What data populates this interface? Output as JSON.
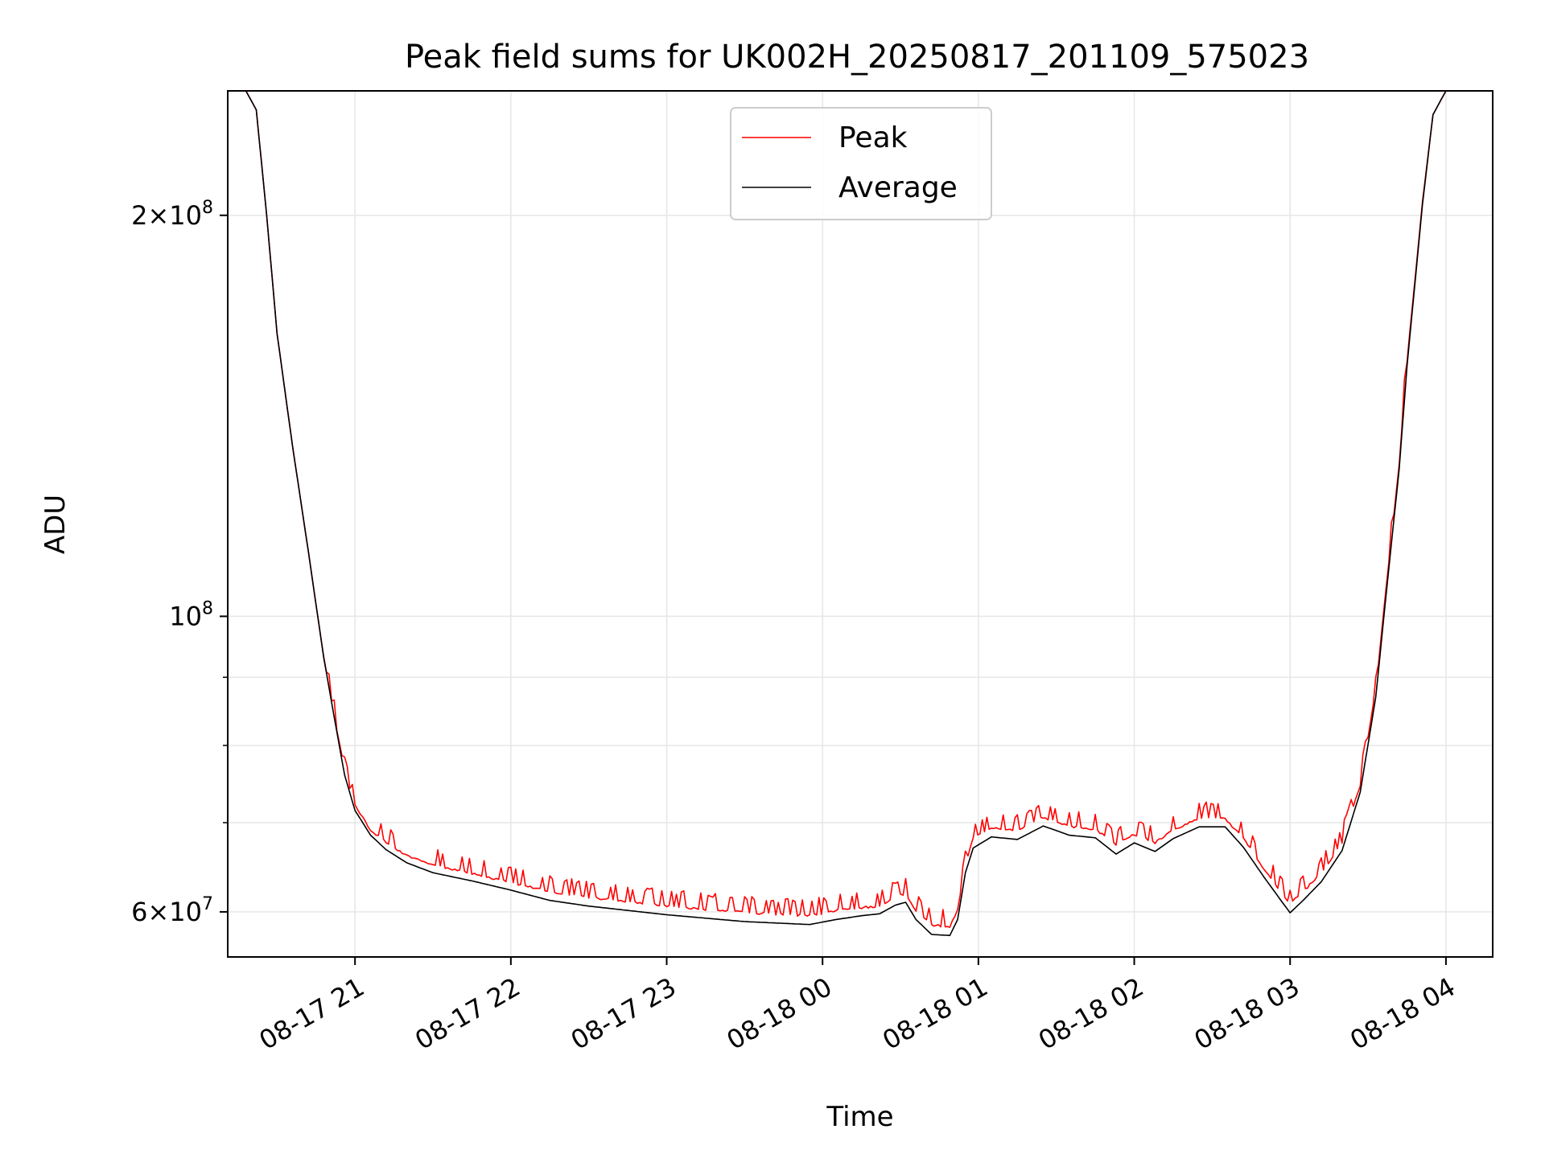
{
  "chart_data": {
    "type": "line",
    "title": "Peak field sums for UK002H_20250817_201109_575023",
    "xlabel": "Time",
    "ylabel": "ADU",
    "yscale": "log",
    "grid": true,
    "legend_position": "top-center",
    "xlim": [
      "2025-08-17 20:11",
      "2025-08-18 04:18"
    ],
    "ylim": [
      55500000,
      248000000
    ],
    "xticks": [
      {
        "t": "2025-08-17 21:00",
        "label": "08-17 21"
      },
      {
        "t": "2025-08-17 22:00",
        "label": "08-17 22"
      },
      {
        "t": "2025-08-17 23:00",
        "label": "08-17 23"
      },
      {
        "t": "2025-08-18 00:00",
        "label": "08-18 00"
      },
      {
        "t": "2025-08-18 01:00",
        "label": "08-18 01"
      },
      {
        "t": "2025-08-18 02:00",
        "label": "08-18 02"
      },
      {
        "t": "2025-08-18 03:00",
        "label": "08-18 03"
      },
      {
        "t": "2025-08-18 04:00",
        "label": "08-18 04"
      }
    ],
    "yticks_major": [
      {
        "v": 60000000,
        "mant": "6",
        "base": "10",
        "exp": "7"
      },
      {
        "v": 100000000,
        "mant": "",
        "base": "10",
        "exp": "8"
      },
      {
        "v": 200000000,
        "mant": "2",
        "base": "10",
        "exp": "8"
      }
    ],
    "yticks_minor": [
      70000000,
      80000000,
      90000000
    ],
    "series": [
      {
        "name": "Peak",
        "color": "#ff0000",
        "spiky": true,
        "points": [
          [
            "2025-08-17 20:11",
            248000000
          ],
          [
            "2025-08-17 20:18",
            248000000
          ],
          [
            "2025-08-17 20:22",
            240000000
          ],
          [
            "2025-08-17 20:26",
            200000000
          ],
          [
            "2025-08-17 20:30",
            163000000
          ],
          [
            "2025-08-17 20:36",
            134000000
          ],
          [
            "2025-08-17 20:42",
            112000000
          ],
          [
            "2025-08-17 20:48",
            93000000
          ],
          [
            "2025-08-17 20:52",
            84000000
          ],
          [
            "2025-08-17 20:56",
            76500000
          ],
          [
            "2025-08-17 21:00",
            72000000
          ],
          [
            "2025-08-17 21:06",
            69000000
          ],
          [
            "2025-08-17 21:12",
            67500000
          ],
          [
            "2025-08-17 21:20",
            66000000
          ],
          [
            "2025-08-17 21:30",
            64900000
          ],
          [
            "2025-08-17 21:45",
            64000000
          ],
          [
            "2025-08-17 22:00",
            63000000
          ],
          [
            "2025-08-17 22:15",
            62000000
          ],
          [
            "2025-08-17 22:30",
            61400000
          ],
          [
            "2025-08-17 23:00",
            60500000
          ],
          [
            "2025-08-17 23:30",
            59800000
          ],
          [
            "2025-08-17 23:55",
            59500000
          ],
          [
            "2025-08-18 00:05",
            60000000
          ],
          [
            "2025-08-18 00:15",
            60300000
          ],
          [
            "2025-08-18 00:22",
            60500000
          ],
          [
            "2025-08-18 00:28",
            61500000
          ],
          [
            "2025-08-18 00:32",
            61800000
          ],
          [
            "2025-08-18 00:36",
            60000000
          ],
          [
            "2025-08-18 00:42",
            58500000
          ],
          [
            "2025-08-18 00:49",
            58400000
          ],
          [
            "2025-08-18 00:52",
            60000000
          ],
          [
            "2025-08-18 00:55",
            65000000
          ],
          [
            "2025-08-18 00:58",
            68000000
          ],
          [
            "2025-08-18 01:05",
            69200000
          ],
          [
            "2025-08-18 01:15",
            68900000
          ],
          [
            "2025-08-18 01:25",
            70500000
          ],
          [
            "2025-08-18 01:35",
            69400000
          ],
          [
            "2025-08-18 01:45",
            69100000
          ],
          [
            "2025-08-18 01:53",
            67200000
          ],
          [
            "2025-08-18 02:00",
            68500000
          ],
          [
            "2025-08-18 02:08",
            67500000
          ],
          [
            "2025-08-18 02:15",
            69000000
          ],
          [
            "2025-08-18 02:25",
            70400000
          ],
          [
            "2025-08-18 02:35",
            70400000
          ],
          [
            "2025-08-18 02:42",
            68000000
          ],
          [
            "2025-08-18 02:50",
            64500000
          ],
          [
            "2025-08-18 02:57",
            61800000
          ],
          [
            "2025-08-18 03:00",
            60800000
          ],
          [
            "2025-08-18 03:05",
            62000000
          ],
          [
            "2025-08-18 03:12",
            64000000
          ],
          [
            "2025-08-18 03:20",
            67500000
          ],
          [
            "2025-08-18 03:27",
            74500000
          ],
          [
            "2025-08-18 03:33",
            88000000
          ],
          [
            "2025-08-18 03:37",
            105000000
          ],
          [
            "2025-08-18 03:42",
            130000000
          ],
          [
            "2025-08-18 03:45",
            155000000
          ],
          [
            "2025-08-18 03:51",
            205000000
          ],
          [
            "2025-08-18 03:55",
            238000000
          ],
          [
            "2025-08-18 04:00",
            248000000
          ],
          [
            "2025-08-18 04:18",
            248000000
          ]
        ]
      },
      {
        "name": "Average",
        "color": "#000000",
        "spiky": false,
        "points": [
          [
            "2025-08-17 20:11",
            248000000
          ],
          [
            "2025-08-17 20:18",
            248000000
          ],
          [
            "2025-08-17 20:22",
            240000000
          ],
          [
            "2025-08-17 20:26",
            200000000
          ],
          [
            "2025-08-17 20:30",
            163000000
          ],
          [
            "2025-08-17 20:36",
            134000000
          ],
          [
            "2025-08-17 20:42",
            112000000
          ],
          [
            "2025-08-17 20:48",
            93000000
          ],
          [
            "2025-08-17 20:52",
            84000000
          ],
          [
            "2025-08-17 20:56",
            76000000
          ],
          [
            "2025-08-17 21:00",
            71500000
          ],
          [
            "2025-08-17 21:06",
            68500000
          ],
          [
            "2025-08-17 21:12",
            66800000
          ],
          [
            "2025-08-17 21:20",
            65300000
          ],
          [
            "2025-08-17 21:30",
            64200000
          ],
          [
            "2025-08-17 21:45",
            63300000
          ],
          [
            "2025-08-17 22:00",
            62300000
          ],
          [
            "2025-08-17 22:15",
            61200000
          ],
          [
            "2025-08-17 22:30",
            60600000
          ],
          [
            "2025-08-17 23:00",
            59700000
          ],
          [
            "2025-08-17 23:30",
            59000000
          ],
          [
            "2025-08-17 23:55",
            58700000
          ],
          [
            "2025-08-18 00:05",
            59200000
          ],
          [
            "2025-08-18 00:15",
            59600000
          ],
          [
            "2025-08-18 00:22",
            59800000
          ],
          [
            "2025-08-18 00:28",
            60700000
          ],
          [
            "2025-08-18 00:32",
            61000000
          ],
          [
            "2025-08-18 00:36",
            59200000
          ],
          [
            "2025-08-18 00:42",
            57700000
          ],
          [
            "2025-08-18 00:49",
            57600000
          ],
          [
            "2025-08-18 00:52",
            59200000
          ],
          [
            "2025-08-18 00:55",
            64200000
          ],
          [
            "2025-08-18 00:58",
            67000000
          ],
          [
            "2025-08-18 01:05",
            68300000
          ],
          [
            "2025-08-18 01:15",
            68000000
          ],
          [
            "2025-08-18 01:25",
            69600000
          ],
          [
            "2025-08-18 01:35",
            68500000
          ],
          [
            "2025-08-18 01:45",
            68200000
          ],
          [
            "2025-08-18 01:53",
            66300000
          ],
          [
            "2025-08-18 02:00",
            67600000
          ],
          [
            "2025-08-18 02:08",
            66600000
          ],
          [
            "2025-08-18 02:15",
            68100000
          ],
          [
            "2025-08-18 02:25",
            69500000
          ],
          [
            "2025-08-18 02:35",
            69500000
          ],
          [
            "2025-08-18 02:42",
            67100000
          ],
          [
            "2025-08-18 02:50",
            63700000
          ],
          [
            "2025-08-18 02:57",
            61000000
          ],
          [
            "2025-08-18 03:00",
            59900000
          ],
          [
            "2025-08-18 03:05",
            61200000
          ],
          [
            "2025-08-18 03:12",
            63200000
          ],
          [
            "2025-08-18 03:20",
            66700000
          ],
          [
            "2025-08-18 03:27",
            73800000
          ],
          [
            "2025-08-18 03:33",
            87000000
          ],
          [
            "2025-08-18 03:37",
            104000000
          ],
          [
            "2025-08-18 03:42",
            129000000
          ],
          [
            "2025-08-18 03:45",
            154000000
          ],
          [
            "2025-08-18 03:51",
            204000000
          ],
          [
            "2025-08-18 03:55",
            238000000
          ],
          [
            "2025-08-18 04:00",
            248000000
          ],
          [
            "2025-08-18 04:18",
            248000000
          ]
        ]
      }
    ]
  }
}
